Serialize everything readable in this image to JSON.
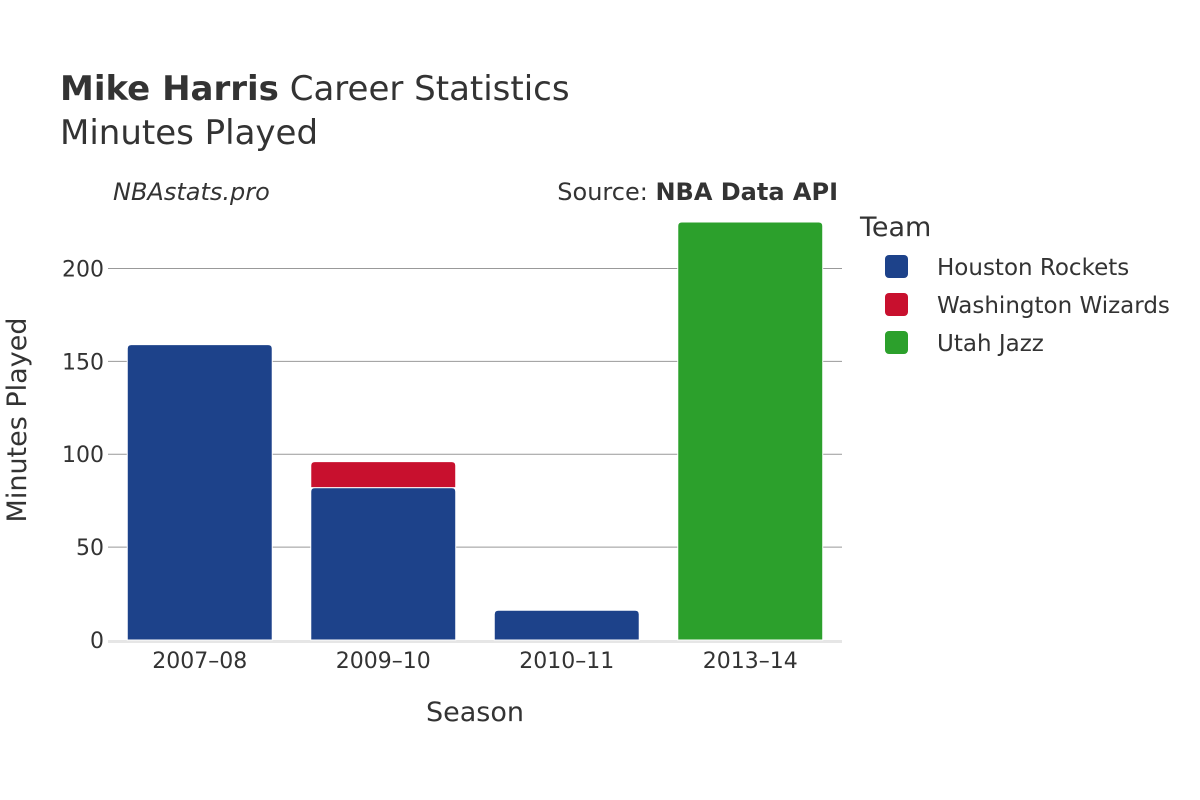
{
  "title": {
    "name": "Mike Harris",
    "rest": " Career Statistics"
  },
  "subtitle": "Minutes Played",
  "watermark": "NBAstats.pro",
  "source": {
    "prefix": "Source: ",
    "name": "NBA Data API"
  },
  "legend": {
    "title": "Team",
    "items": [
      {
        "label": "Houston Rockets",
        "color": "#1d428a"
      },
      {
        "label": "Washington Wizards",
        "color": "#c8102e"
      },
      {
        "label": "Utah Jazz",
        "color": "#2ca02c"
      }
    ]
  },
  "chart_data": {
    "type": "bar",
    "stacked": true,
    "title": "Mike Harris Career Statistics",
    "subtitle": "Minutes Played",
    "xlabel": "Season",
    "ylabel": "Minutes Played",
    "categories": [
      "2007–08",
      "2009–10",
      "2010–11",
      "2013–14"
    ],
    "series": [
      {
        "name": "Houston Rockets",
        "color": "#1d428a",
        "values": [
          159,
          82,
          16,
          0
        ]
      },
      {
        "name": "Washington Wizards",
        "color": "#c8102e",
        "values": [
          0,
          14,
          0,
          0
        ]
      },
      {
        "name": "Utah Jazz",
        "color": "#2ca02c",
        "values": [
          0,
          0,
          0,
          225
        ]
      }
    ],
    "ylim": [
      0,
      225
    ],
    "yticks": [
      0,
      50,
      100,
      150,
      200
    ],
    "grid": true,
    "legend_position": "right"
  }
}
